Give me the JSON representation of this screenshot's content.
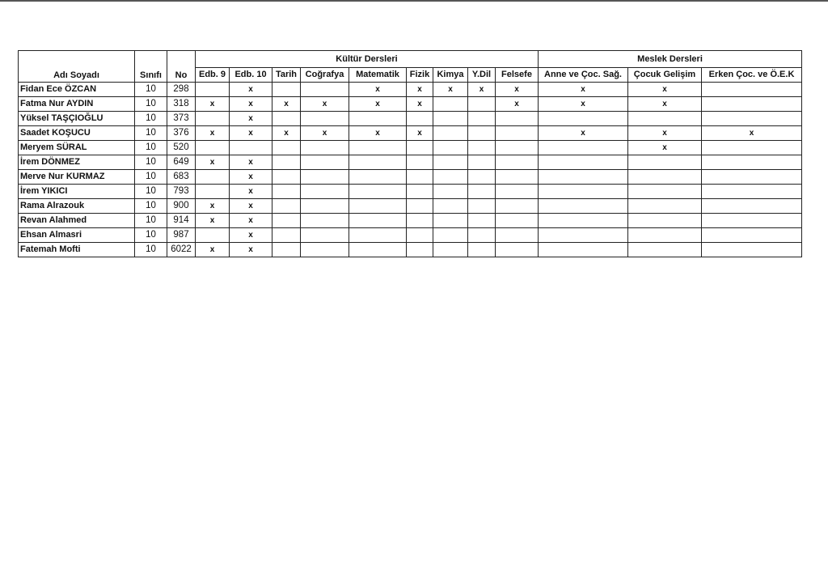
{
  "headers": {
    "name": "Adı Soyadı",
    "class": "Sınıfı",
    "no": "No",
    "group_culture": "Kültür Dersleri",
    "group_vocational": "Meslek Dersleri",
    "subjects": [
      "Edb. 9",
      "Edb. 10",
      "Tarih",
      "Coğrafya",
      "Matematik",
      "Fizik",
      "Kimya",
      "Y.Dil",
      "Felsefe",
      "Anne ve Çoc. Sağ.",
      "Çocuk Gelişim",
      "Erken Çoc. ve Ö.E.K"
    ]
  },
  "rows": [
    {
      "name": "Fidan Ece ÖZCAN",
      "class": "10",
      "no": "298",
      "marks": [
        "",
        "x",
        "",
        "",
        "x",
        "x",
        "x",
        "x",
        "x",
        "x",
        "x",
        ""
      ]
    },
    {
      "name": "Fatma Nur AYDIN",
      "class": "10",
      "no": "318",
      "marks": [
        "x",
        "x",
        "x",
        "x",
        "x",
        "x",
        "",
        "",
        "x",
        "x",
        "x",
        ""
      ]
    },
    {
      "name": "Yüksel TAŞÇIOĞLU",
      "class": "10",
      "no": "373",
      "marks": [
        "",
        "x",
        "",
        "",
        "",
        "",
        "",
        "",
        "",
        "",
        "",
        ""
      ]
    },
    {
      "name": "Saadet KOŞUCU",
      "class": "10",
      "no": "376",
      "marks": [
        "x",
        "x",
        "x",
        "x",
        "x",
        "x",
        "",
        "",
        "",
        "x",
        "x",
        "x"
      ]
    },
    {
      "name": "Meryem SÜRAL",
      "class": "10",
      "no": "520",
      "marks": [
        "",
        "",
        "",
        "",
        "",
        "",
        "",
        "",
        "",
        "",
        "x",
        ""
      ]
    },
    {
      "name": "İrem DÖNMEZ",
      "class": "10",
      "no": "649",
      "marks": [
        "x",
        "x",
        "",
        "",
        "",
        "",
        "",
        "",
        "",
        "",
        "",
        ""
      ]
    },
    {
      "name": "Merve Nur KURMAZ",
      "class": "10",
      "no": "683",
      "marks": [
        "",
        "x",
        "",
        "",
        "",
        "",
        "",
        "",
        "",
        "",
        "",
        ""
      ]
    },
    {
      "name": "İrem YIKICI",
      "class": "10",
      "no": "793",
      "marks": [
        "",
        "x",
        "",
        "",
        "",
        "",
        "",
        "",
        "",
        "",
        "",
        ""
      ]
    },
    {
      "name": "Rama Alrazouk",
      "class": "10",
      "no": "900",
      "marks": [
        "x",
        "x",
        "",
        "",
        "",
        "",
        "",
        "",
        "",
        "",
        "",
        ""
      ]
    },
    {
      "name": "Revan Alahmed",
      "class": "10",
      "no": "914",
      "marks": [
        "x",
        "x",
        "",
        "",
        "",
        "",
        "",
        "",
        "",
        "",
        "",
        ""
      ]
    },
    {
      "name": "Ehsan Almasri",
      "class": "10",
      "no": "987",
      "marks": [
        "",
        "x",
        "",
        "",
        "",
        "",
        "",
        "",
        "",
        "",
        "",
        ""
      ]
    },
    {
      "name": "Fatemah Mofti",
      "class": "10",
      "no": "6022",
      "marks": [
        "x",
        "x",
        "",
        "",
        "",
        "",
        "",
        "",
        "",
        "",
        "",
        ""
      ]
    }
  ]
}
